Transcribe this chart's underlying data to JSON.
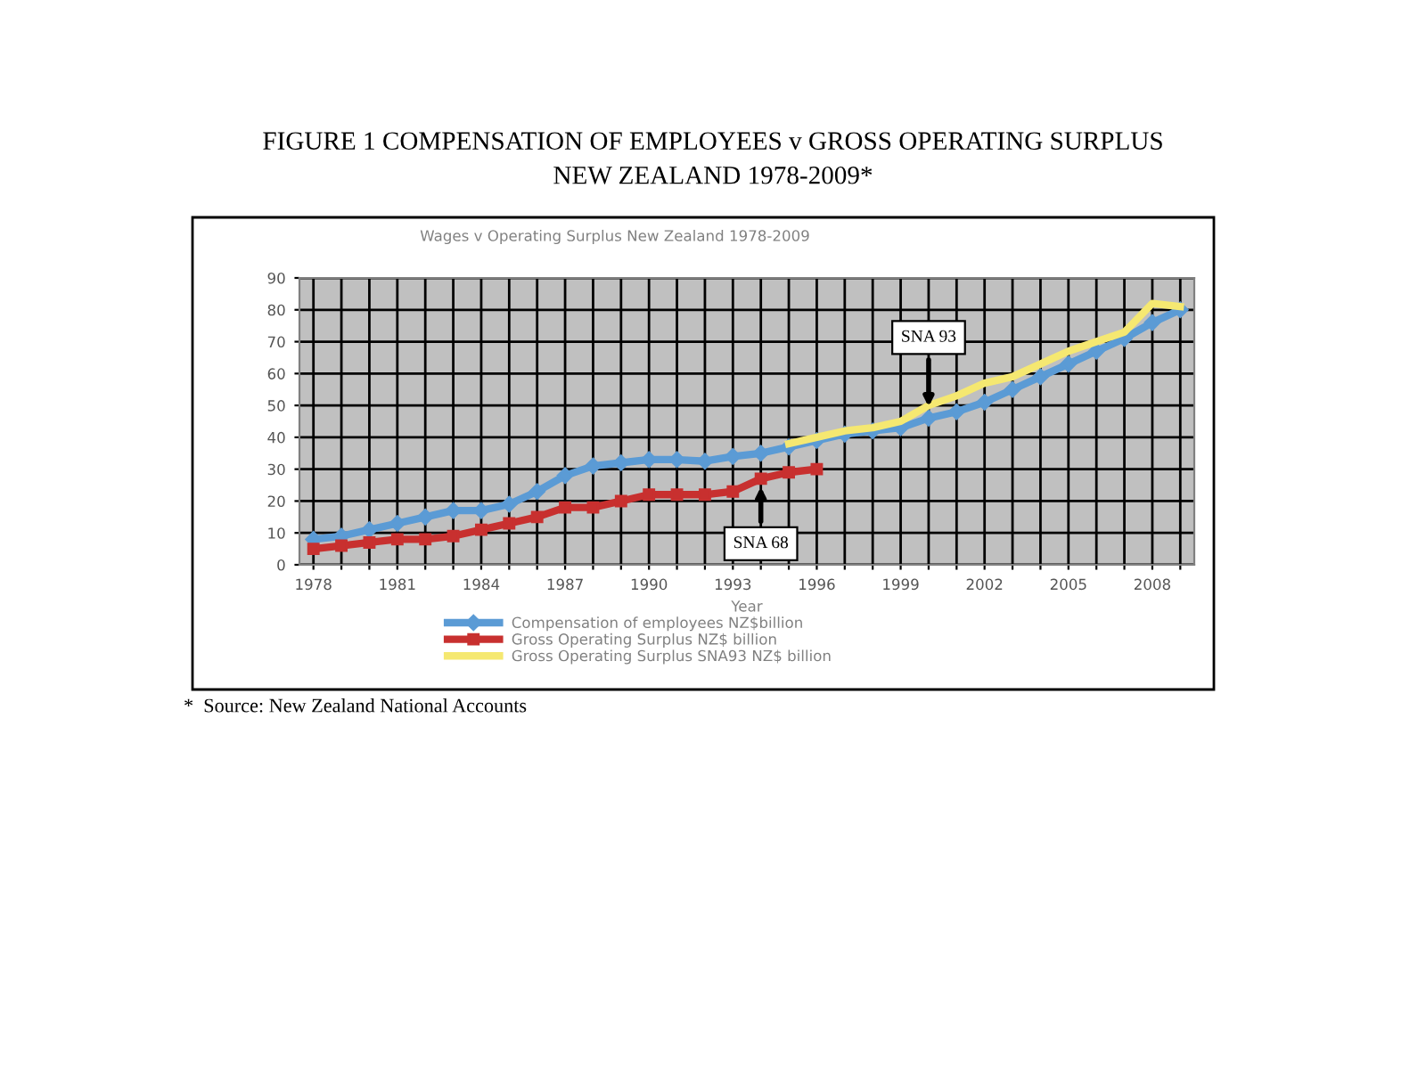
{
  "chart_data": {
    "type": "line",
    "title": "FIGURE 1 COMPENSATION OF EMPLOYEES v GROSS OPERATING SURPLUS\nNEW ZEALAND 1978-2009*",
    "subtitle": "Wages v Operating Surplus New Zealand 1978-2009",
    "xlabel": "Year",
    "x": [
      1978,
      1979,
      1980,
      1981,
      1982,
      1983,
      1984,
      1985,
      1986,
      1987,
      1988,
      1989,
      1990,
      1991,
      1992,
      1993,
      1994,
      1995,
      1996,
      1997,
      1998,
      1999,
      2000,
      2001,
      2002,
      2003,
      2004,
      2005,
      2006,
      2007,
      2008,
      2009
    ],
    "xlim": [
      1977.5,
      2009.5
    ],
    "xticks": [
      1978,
      {
        "value": 1979,
        "label": null
      },
      {
        "value": 1980,
        "label": null
      },
      1981,
      {
        "value": 1982,
        "label": null
      },
      {
        "value": 1983,
        "label": null
      },
      1984,
      {
        "value": 1985,
        "label": null
      },
      {
        "value": 1986,
        "label": null
      },
      1987,
      {
        "value": 1988,
        "label": null
      },
      {
        "value": 1989,
        "label": null
      },
      1990,
      {
        "value": 1991,
        "label": null
      },
      {
        "value": 1992,
        "label": null
      },
      1993,
      {
        "value": 1994,
        "label": null
      },
      {
        "value": 1995,
        "label": null
      },
      1996,
      {
        "value": 1997,
        "label": null
      },
      {
        "value": 1998,
        "label": null
      },
      1999,
      {
        "value": 2000,
        "label": null
      },
      {
        "value": 2001,
        "label": null
      },
      2002,
      {
        "value": 2003,
        "label": null
      },
      {
        "value": 2004,
        "label": null
      },
      2005,
      {
        "value": 2006,
        "label": null
      },
      {
        "value": 2007,
        "label": null
      },
      2008,
      {
        "value": 2009,
        "label": null
      }
    ],
    "series": [
      {
        "name": "Compensation of employees NZ$billion",
        "color": "#5b9bd5",
        "marker": "diamond",
        "values": [
          8,
          9,
          11,
          13,
          15,
          17,
          17,
          19,
          23,
          28,
          31,
          32,
          33,
          33,
          32.5,
          34,
          35,
          37,
          39,
          41,
          42,
          43,
          46,
          48,
          51,
          55,
          59,
          63,
          67,
          71,
          76,
          80
        ]
      },
      {
        "name": "Gross Operating Surplus NZ$ billion",
        "color": "#c8302f",
        "marker": "square",
        "values": [
          5,
          6,
          7,
          8,
          8,
          9,
          11,
          13,
          15,
          18,
          18,
          20,
          22,
          22,
          22,
          23,
          27,
          29,
          30,
          null,
          null,
          null,
          null,
          null,
          null,
          null,
          null,
          null,
          null,
          null,
          null,
          null
        ]
      },
      {
        "name": "Gross Operating Surplus SNA93 NZ$ billion",
        "color": "#f5e871",
        "marker": "none",
        "values": [
          null,
          null,
          null,
          null,
          null,
          null,
          null,
          null,
          null,
          null,
          null,
          null,
          null,
          null,
          null,
          null,
          null,
          38,
          40,
          42,
          43,
          45,
          50,
          53,
          57,
          59,
          63,
          67,
          70,
          73,
          82,
          81
        ]
      }
    ],
    "ylim": [
      0,
      90
    ],
    "yticks": [
      0,
      10,
      20,
      30,
      40,
      50,
      60,
      70,
      80,
      90
    ],
    "grid": true,
    "legend": "bottom",
    "annotations": [
      {
        "text": "SNA 93",
        "x": 2000,
        "y": 48
      },
      {
        "text": "SNA 68",
        "x": 1994,
        "y": 26
      },
      "*  Source: New Zealand National Accounts"
    ]
  }
}
